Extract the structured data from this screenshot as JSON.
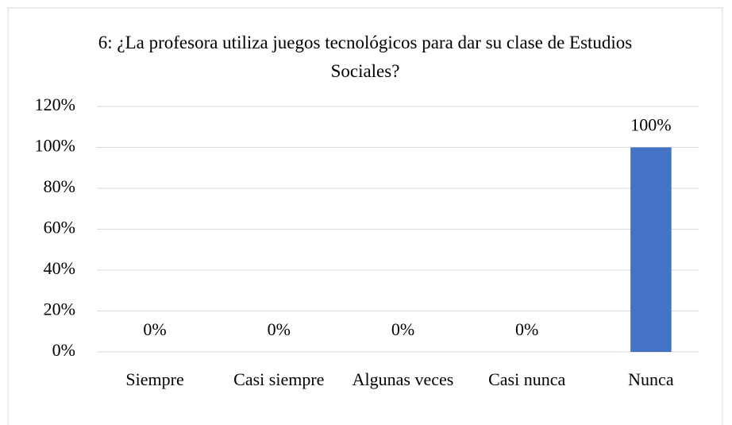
{
  "chart_data": {
    "type": "bar",
    "title": "6: ¿La profesora utiliza juegos tecnológicos para dar su clase de Estudios Sociales?",
    "categories": [
      "Siempre",
      "Casi siempre",
      "Algunas veces",
      "Casi nunca",
      "Nunca"
    ],
    "values": [
      0,
      0,
      0,
      0,
      100
    ],
    "value_labels": [
      "0%",
      "0%",
      "0%",
      "0%",
      "100%"
    ],
    "color": "#4472c4",
    "ylim": [
      0,
      120
    ],
    "yticks": [
      {
        "value": 0,
        "label": "0%"
      },
      {
        "value": 20,
        "label": "20%"
      },
      {
        "value": 40,
        "label": "40%"
      },
      {
        "value": 60,
        "label": "60%"
      },
      {
        "value": 80,
        "label": "80%"
      },
      {
        "value": 100,
        "label": "100%"
      },
      {
        "value": 120,
        "label": "120%"
      }
    ],
    "grid": true
  }
}
